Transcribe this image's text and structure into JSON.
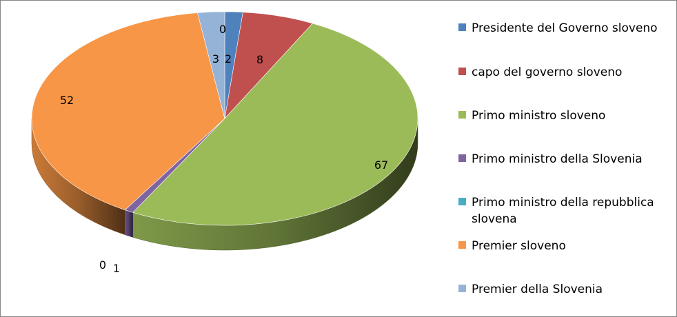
{
  "chart_data": {
    "type": "pie",
    "style": "3d",
    "categories": [
      "Presidente del Governo sloveno",
      "capo del governo sloveno",
      "Primo ministro sloveno",
      "Primo ministro della Slovenia",
      "Primo ministro della repubblica slovena",
      "Premier sloveno",
      "Premier della Slovenia"
    ],
    "values": [
      2,
      8,
      67,
      1,
      0,
      52,
      3
    ],
    "colors": [
      "#4F81BD",
      "#C0504D",
      "#9BBB59",
      "#8064A2",
      "#4BACC6",
      "#F79646",
      "#95B3D7"
    ],
    "legend_position": "right",
    "title": ""
  }
}
